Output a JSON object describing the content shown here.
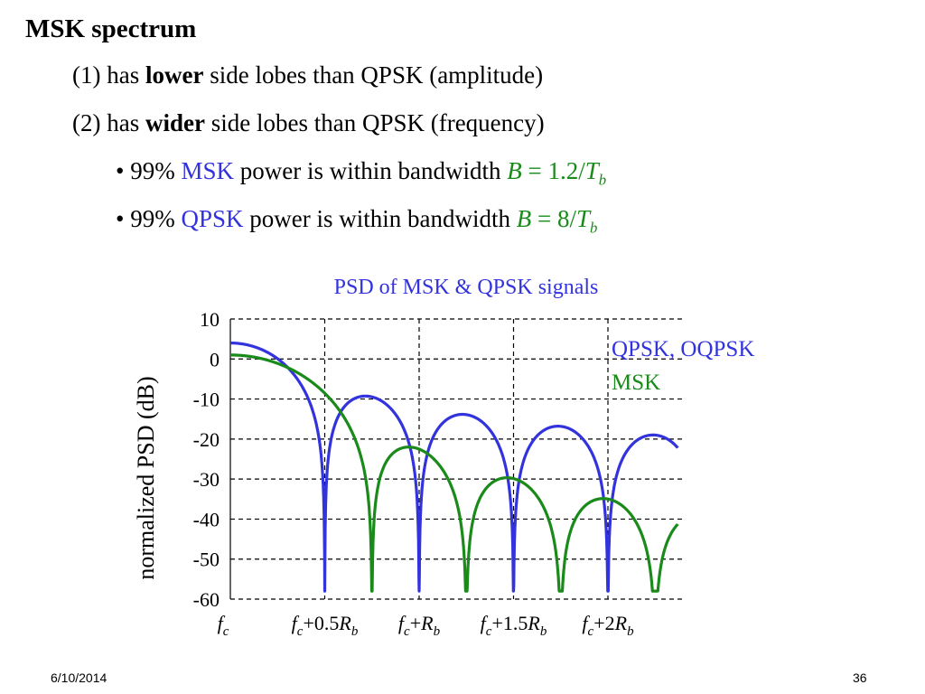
{
  "slide": {
    "title": "MSK spectrum",
    "point1": {
      "pre": "(1) has ",
      "bold": "lower",
      "post": " side lobes than QPSK (amplitude)"
    },
    "point2": {
      "pre": "(2) has ",
      "bold": "wider",
      "post": " side lobes than QPSK (frequency)"
    },
    "bullet1": {
      "prefix": "• 99% ",
      "signal": "MSK",
      "mid": " power is within bandwidth ",
      "b": "B",
      "eq": " = 1.2/",
      "t": "T",
      "sub": "b"
    },
    "bullet2": {
      "prefix": "• 99% ",
      "signal": "QPSK",
      "mid": " power is within bandwidth  ",
      "b": "B",
      "eq": " = 8/",
      "t": "T",
      "sub": "b"
    }
  },
  "colors": {
    "qpsk": "#3333dd",
    "msk": "#1a8a1a",
    "title": "#3333dd",
    "grid": "#000000"
  },
  "chart_data": {
    "type": "line",
    "title": "PSD of MSK & QPSK signals",
    "ylabel": "normalized PSD (dB)",
    "ylim": [
      -60,
      10
    ],
    "yticks": [
      "10",
      "0",
      "-10",
      "-20",
      "-30",
      "-40",
      "-50",
      "-60"
    ],
    "xlim": [
      0,
      2.37
    ],
    "xticks": [
      {
        "base": "f",
        "base_sub": "c",
        "off": "",
        "rb": "",
        "rb_sub": ""
      },
      {
        "base": "f",
        "base_sub": "c",
        "off": "+0.5",
        "rb": "R",
        "rb_sub": "b"
      },
      {
        "base": "f",
        "base_sub": "c",
        "off": "+",
        "rb": "R",
        "rb_sub": "b"
      },
      {
        "base": "f",
        "base_sub": "c",
        "off": "+1.5",
        "rb": "R",
        "rb_sub": "b"
      },
      {
        "base": "f",
        "base_sub": "c",
        "off": "+2",
        "rb": "R",
        "rb_sub": "b"
      }
    ],
    "grid": true,
    "legend_placement": "top-right",
    "series": [
      {
        "name": "QPSK, OQPSK",
        "color": "#3333dd",
        "floor_db": -60
      },
      {
        "name": "MSK",
        "color": "#1a8a1a",
        "floor_db": -60
      }
    ]
  },
  "footer": {
    "date": "6/10/2014",
    "page": "36"
  }
}
